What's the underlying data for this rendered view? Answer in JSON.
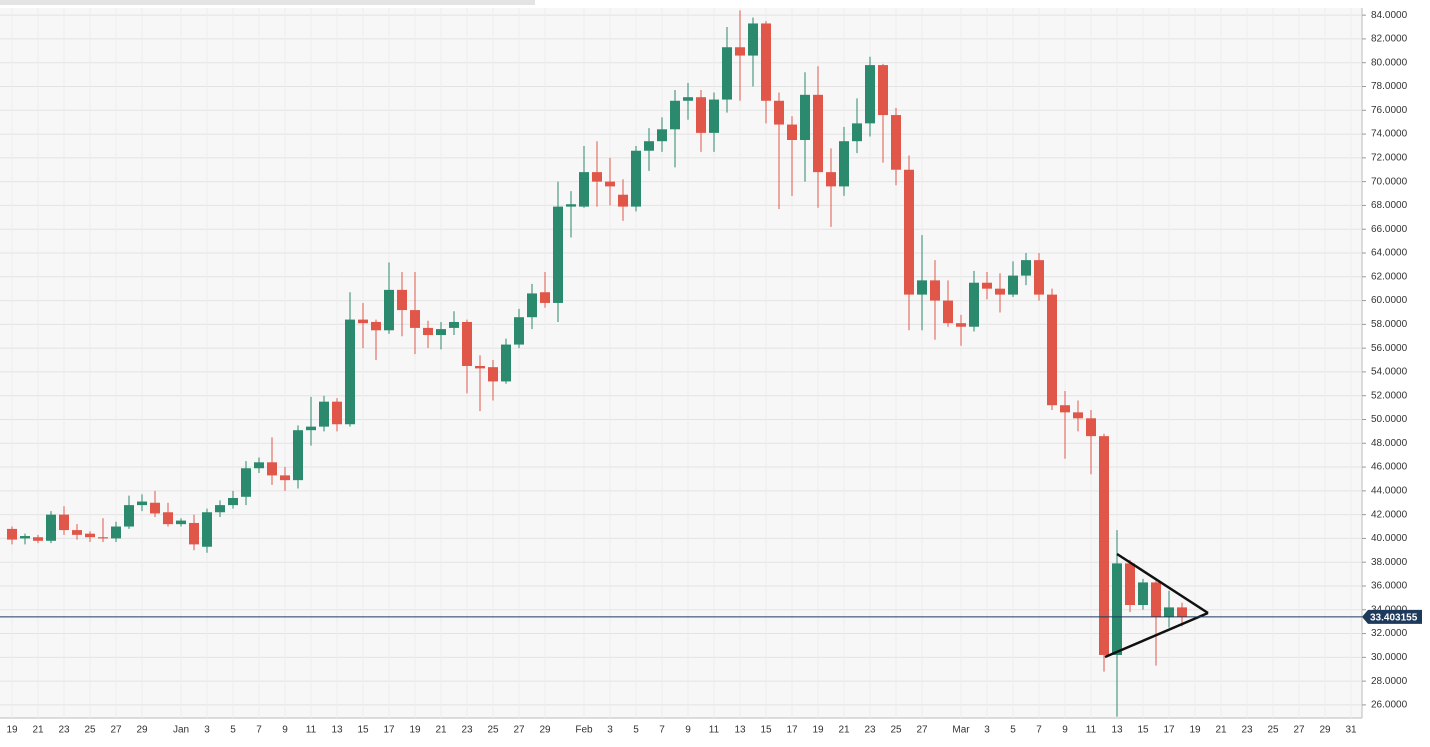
{
  "chart_data": {
    "type": "candlestick",
    "categories": [
      "19",
      null,
      "21",
      null,
      "23",
      null,
      "25",
      null,
      "27",
      null,
      "29",
      null,
      null,
      "Jan",
      null,
      "3",
      null,
      "5",
      null,
      "7",
      null,
      "9",
      null,
      "11",
      null,
      "13",
      null,
      "15",
      null,
      "17",
      null,
      "19",
      null,
      "21",
      null,
      "23",
      null,
      "25",
      null,
      "27",
      null,
      "29",
      null,
      null,
      "Feb",
      null,
      "3",
      null,
      "5",
      null,
      "7",
      null,
      "9",
      null,
      "11",
      null,
      "13",
      null,
      "15",
      null,
      "17",
      null,
      "19",
      null,
      "21",
      null,
      "23",
      null,
      "25",
      null,
      "27",
      null,
      null,
      "Mar",
      null,
      "3",
      null,
      "5",
      null,
      "7",
      null,
      "9",
      null,
      "11",
      null,
      "13",
      null,
      "15",
      null,
      "17",
      null,
      "19",
      null,
      "21",
      null,
      "23",
      null,
      "25",
      null,
      "27",
      null,
      "29",
      null,
      "31"
    ],
    "open": [
      40.8,
      40.0,
      40.1,
      39.8,
      42.0,
      40.7,
      40.4,
      40.1,
      40.0,
      41.0,
      42.8,
      43.0,
      42.2,
      41.2,
      41.3,
      39.3,
      42.2,
      42.8,
      43.5,
      45.9,
      46.4,
      45.3,
      44.9,
      49.1,
      49.4,
      51.5,
      49.6,
      58.4,
      58.2,
      57.5,
      60.9,
      59.2,
      57.7,
      57.1,
      57.7,
      58.2,
      54.5,
      54.4,
      53.2,
      56.3,
      58.6,
      60.7,
      59.8,
      67.9,
      67.9,
      70.8,
      70.0,
      68.9,
      67.9,
      72.6,
      73.4,
      74.4,
      76.8,
      77.1,
      74.1,
      76.9,
      81.3,
      80.6,
      83.3,
      76.8,
      74.8,
      73.5,
      77.3,
      70.8,
      69.6,
      73.4,
      74.9,
      79.8,
      75.6,
      71.0,
      60.5,
      61.7,
      60.0,
      58.1,
      57.8,
      61.5,
      61.0,
      60.5,
      62.1,
      63.4,
      60.5,
      51.2,
      50.6,
      50.1,
      48.6,
      30.2,
      37.9,
      34.4,
      36.3,
      33.4,
      34.2,
      null,
      null,
      null,
      null,
      null,
      null,
      null,
      null,
      null,
      null,
      null,
      null,
      null
    ],
    "high": [
      41.0,
      40.4,
      40.3,
      42.3,
      42.7,
      41.2,
      40.6,
      41.7,
      41.4,
      43.6,
      43.7,
      44.0,
      43.0,
      41.7,
      42.0,
      42.5,
      43.2,
      44.0,
      46.5,
      46.8,
      48.5,
      46.0,
      49.5,
      51.9,
      52.0,
      51.8,
      60.7,
      59.8,
      58.4,
      63.2,
      62.4,
      62.4,
      58.3,
      58.2,
      59.1,
      58.4,
      55.4,
      55.0,
      56.8,
      59.3,
      61.4,
      62.4,
      70.0,
      69.2,
      73.0,
      73.4,
      72.0,
      70.2,
      73.0,
      74.5,
      75.4,
      77.7,
      78.3,
      77.7,
      77.5,
      83.0,
      84.4,
      83.8,
      83.5,
      77.5,
      75.5,
      79.2,
      79.7,
      72.8,
      74.6,
      77.0,
      80.5,
      79.9,
      76.2,
      72.2,
      65.5,
      63.4,
      61.7,
      58.8,
      62.5,
      62.4,
      62.3,
      63.3,
      64.0,
      64.0,
      61.0,
      52.4,
      51.6,
      50.8,
      48.8,
      40.7,
      38.2,
      36.6,
      36.6,
      35.6,
      34.6,
      null,
      null,
      null,
      null,
      null,
      null,
      null,
      null,
      null,
      null,
      null,
      null,
      null
    ],
    "low": [
      39.5,
      39.5,
      39.6,
      39.6,
      40.3,
      39.9,
      39.7,
      39.7,
      39.7,
      40.8,
      42.3,
      41.8,
      41.0,
      41.0,
      39.0,
      38.8,
      41.8,
      42.5,
      42.8,
      45.5,
      44.5,
      44.0,
      44.2,
      47.8,
      49.0,
      49.0,
      49.4,
      56.0,
      55.0,
      57.2,
      57.0,
      55.5,
      56.0,
      55.9,
      57.1,
      52.2,
      50.7,
      51.6,
      53.0,
      56.0,
      57.6,
      59.4,
      58.2,
      65.3,
      67.8,
      67.9,
      68.0,
      66.7,
      67.5,
      70.9,
      72.5,
      71.2,
      75.2,
      72.5,
      72.5,
      75.8,
      76.8,
      78.0,
      74.9,
      67.7,
      68.8,
      70.0,
      67.8,
      66.2,
      68.8,
      72.4,
      73.8,
      71.6,
      69.7,
      57.5,
      57.5,
      56.7,
      57.8,
      56.2,
      57.4,
      60.1,
      59.0,
      60.3,
      61.3,
      60.0,
      50.8,
      46.7,
      49.0,
      45.4,
      28.8,
      25.0,
      33.8,
      34.0,
      29.3,
      32.5,
      32.6,
      null,
      null,
      null,
      null,
      null,
      null,
      null,
      null,
      null,
      null,
      null,
      null,
      null
    ],
    "close": [
      39.9,
      40.2,
      39.8,
      42.0,
      40.7,
      40.3,
      40.1,
      40.0,
      41.0,
      42.8,
      43.1,
      42.1,
      41.2,
      41.5,
      39.5,
      42.2,
      42.8,
      43.4,
      45.9,
      46.4,
      45.3,
      44.9,
      49.1,
      49.4,
      51.5,
      49.6,
      58.4,
      58.1,
      57.5,
      60.9,
      59.2,
      57.7,
      57.1,
      57.6,
      58.2,
      54.5,
      54.3,
      53.2,
      56.3,
      58.6,
      60.6,
      59.8,
      67.9,
      68.1,
      70.8,
      70.0,
      69.6,
      67.9,
      72.6,
      73.4,
      74.4,
      76.8,
      77.1,
      74.1,
      76.9,
      81.3,
      80.6,
      83.3,
      76.8,
      74.8,
      73.5,
      77.3,
      70.8,
      69.6,
      73.4,
      74.9,
      79.8,
      75.6,
      71.0,
      60.5,
      61.7,
      60.0,
      58.1,
      57.8,
      61.5,
      61.0,
      60.5,
      62.1,
      63.4,
      60.5,
      51.2,
      50.6,
      50.1,
      48.6,
      30.2,
      37.9,
      34.4,
      36.3,
      33.4,
      34.2,
      33.4,
      null,
      null,
      null,
      null,
      null,
      null,
      null,
      null,
      null,
      null,
      null,
      null,
      null
    ],
    "up_color": "#2b8a6e",
    "down_color": "#e0574a",
    "last_price": 33.403155,
    "last_price_color": "#1d3a5c",
    "ylim": [
      24.9,
      84.6
    ],
    "yticks": [
      {
        "value": 26,
        "label": "26.0000"
      },
      {
        "value": 28,
        "label": "28.0000"
      },
      {
        "value": 30,
        "label": "30.0000"
      },
      {
        "value": 32,
        "label": "32.0000"
      },
      {
        "value": 34,
        "label": "34.0000"
      },
      {
        "value": 36,
        "label": "36.0000"
      },
      {
        "value": 38,
        "label": "38.0000"
      },
      {
        "value": 40,
        "label": "40.0000"
      },
      {
        "value": 42,
        "label": "42.0000"
      },
      {
        "value": 44,
        "label": "44.0000"
      },
      {
        "value": 46,
        "label": "46.0000"
      },
      {
        "value": 48,
        "label": "48.0000"
      },
      {
        "value": 50,
        "label": "50.0000"
      },
      {
        "value": 52,
        "label": "52.0000"
      },
      {
        "value": 54,
        "label": "54.0000"
      },
      {
        "value": 56,
        "label": "56.0000"
      },
      {
        "value": 58,
        "label": "58.0000"
      },
      {
        "value": 60,
        "label": "60.0000"
      },
      {
        "value": 62,
        "label": "62.0000"
      },
      {
        "value": 64,
        "label": "64.0000"
      },
      {
        "value": 66,
        "label": "66.0000"
      },
      {
        "value": 68,
        "label": "68.0000"
      },
      {
        "value": 70,
        "label": "70.0000"
      },
      {
        "value": 72,
        "label": "72.0000"
      },
      {
        "value": 74,
        "label": "74.0000"
      },
      {
        "value": 76,
        "label": "76.0000"
      },
      {
        "value": 78,
        "label": "78.0000"
      },
      {
        "value": 80,
        "label": "80.0000"
      },
      {
        "value": 82,
        "label": "82.0000"
      },
      {
        "value": 84,
        "label": "84.0000"
      }
    ],
    "grid": true
  }
}
